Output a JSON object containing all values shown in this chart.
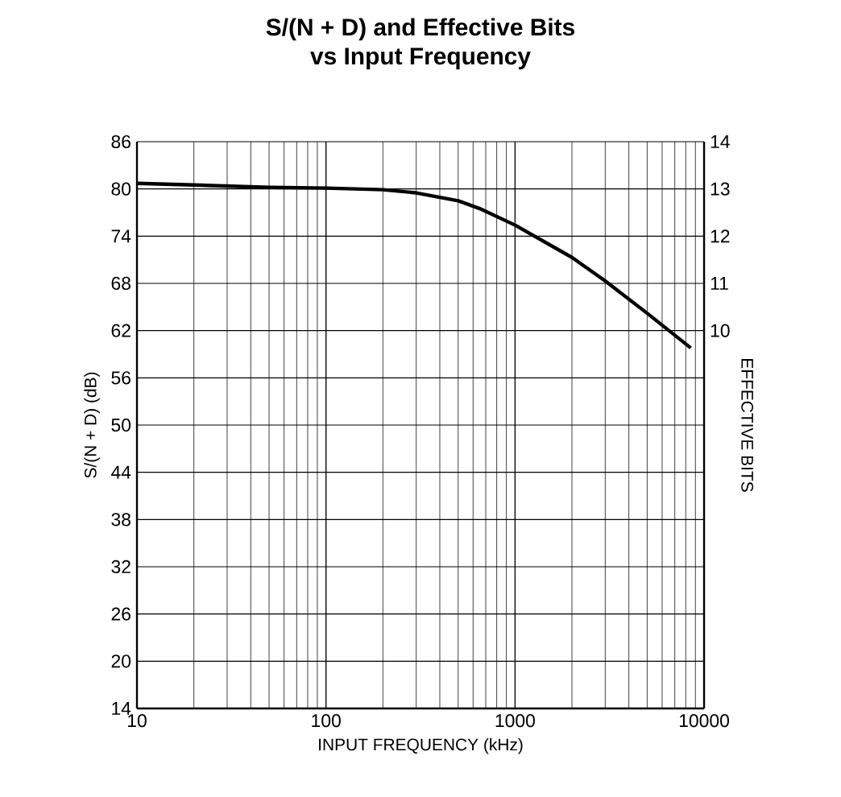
{
  "chart_data": {
    "type": "line",
    "title": "S/(N + D) and Effective Bits\nvs Input Frequency",
    "xlabel": "INPUT FREQUENCY (kHz)",
    "ylabel": "S/(N + D) (dB)",
    "y2label": "EFFECTIVE BITS",
    "log": "x",
    "grid": true,
    "line_style": "solid",
    "color": "#000000",
    "xlim": [
      10,
      10000
    ],
    "xticks": [
      10,
      100,
      1000,
      10000
    ],
    "ylim": [
      14,
      86
    ],
    "yticks": [
      14,
      20,
      26,
      32,
      38,
      44,
      50,
      56,
      62,
      68,
      74,
      80,
      86
    ],
    "y2lim": [
      2,
      14
    ],
    "y2ticks": [
      10,
      11,
      12,
      13,
      14
    ],
    "x": [
      10,
      20,
      50,
      100,
      200,
      300,
      500,
      650,
      1000,
      2000,
      3000,
      5000,
      8500
    ],
    "values": [
      80.7,
      80.5,
      80.2,
      80.1,
      79.9,
      79.5,
      78.5,
      77.5,
      75.4,
      71.3,
      68.3,
      64.2,
      59.8
    ]
  }
}
